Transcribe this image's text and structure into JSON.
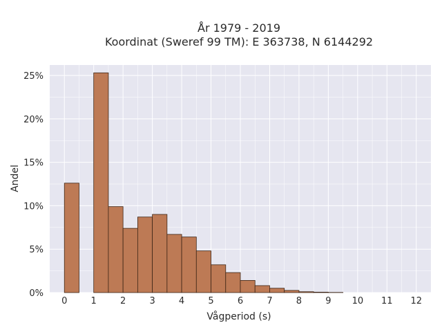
{
  "chart_data": {
    "type": "bar",
    "title": "År 1979 - 2019",
    "subtitle": "Koordinat (Sweref 99 TM): E 363738, N 6144292",
    "xlabel": "Vågperiod (s)",
    "ylabel": "Andel",
    "x_ticks": [
      "0",
      "1",
      "2",
      "3",
      "4",
      "5",
      "6",
      "7",
      "8",
      "9",
      "10",
      "11",
      "12"
    ],
    "y_ticks": [
      "0%",
      "5%",
      "10%",
      "15%",
      "20%",
      "25%"
    ],
    "bin_width": 0.5,
    "xlim": [
      -0.5,
      12.5
    ],
    "ylim": [
      0,
      26.2
    ],
    "grid": true,
    "bars": [
      {
        "x": 0.0,
        "value": 12.6
      },
      {
        "x": 1.0,
        "value": 25.3
      },
      {
        "x": 1.5,
        "value": 9.9
      },
      {
        "x": 2.0,
        "value": 7.4
      },
      {
        "x": 2.5,
        "value": 8.7
      },
      {
        "x": 3.0,
        "value": 9.0
      },
      {
        "x": 3.5,
        "value": 6.7
      },
      {
        "x": 4.0,
        "value": 6.4
      },
      {
        "x": 4.5,
        "value": 4.8
      },
      {
        "x": 5.0,
        "value": 3.2
      },
      {
        "x": 5.5,
        "value": 2.3
      },
      {
        "x": 6.0,
        "value": 1.4
      },
      {
        "x": 6.5,
        "value": 0.8
      },
      {
        "x": 7.0,
        "value": 0.5
      },
      {
        "x": 7.5,
        "value": 0.25
      },
      {
        "x": 8.0,
        "value": 0.1
      },
      {
        "x": 8.5,
        "value": 0.05
      },
      {
        "x": 9.0,
        "value": 0.02
      }
    ],
    "colors": {
      "bar_fill": "#bd7a55",
      "bar_stroke": "#3d2516",
      "plot_bg": "#e6e6f0",
      "grid": "#ffffff"
    }
  }
}
